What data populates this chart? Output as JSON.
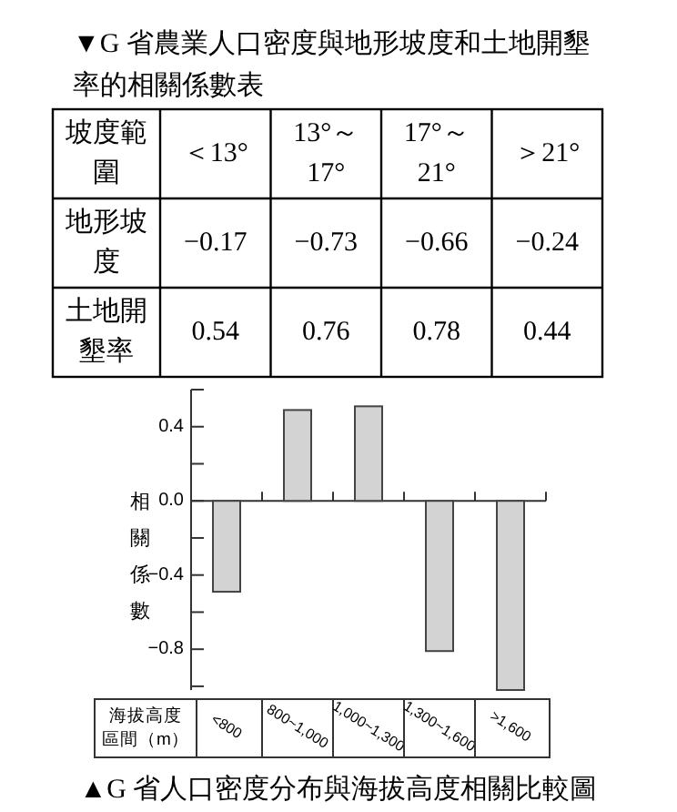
{
  "chart_data": [
    {
      "type": "heatmap",
      "title": "▼G 省農業人口密度與地形坡度和土地開墾率的相關係數表",
      "xlabel": "坡度範圍",
      "categories": [
        "＜13°",
        "13°～17°",
        "17°～21°",
        "＞21°"
      ],
      "y_categories": [
        "地形坡度",
        "土地開墾率"
      ],
      "cells": [
        [
          -0.17,
          -0.73,
          -0.66,
          -0.24
        ],
        [
          0.54,
          0.76,
          0.78,
          0.44
        ]
      ],
      "data_labels": true
    },
    {
      "type": "bar",
      "title": "▲G 省人口密度分布與海拔高度相關比較圖",
      "xlabel": "海拔高度區間（m）",
      "ylabel": "相關係數",
      "categories": [
        "<800",
        "800~1,000",
        "1,000~1,300",
        "1,300~1,600",
        ">1,600"
      ],
      "values": [
        -0.49,
        0.49,
        0.51,
        -0.81,
        -1.02
      ],
      "color": "#d3d3d3",
      "ylim": [
        -1.02,
        0.6
      ],
      "yticks": [
        {
          "value": 0.6,
          "label": null
        },
        {
          "value": 0.4,
          "label": "0.4"
        },
        {
          "value": 0.2,
          "label": null
        },
        {
          "value": 0.0,
          "label": "0.0"
        },
        {
          "value": -0.2,
          "label": null
        },
        {
          "value": -0.4,
          "label": "−0.4"
        },
        {
          "value": -0.6,
          "label": null
        },
        {
          "value": -0.8,
          "label": "−0.8"
        },
        {
          "value": -1.0,
          "label": null
        }
      ]
    }
  ]
}
